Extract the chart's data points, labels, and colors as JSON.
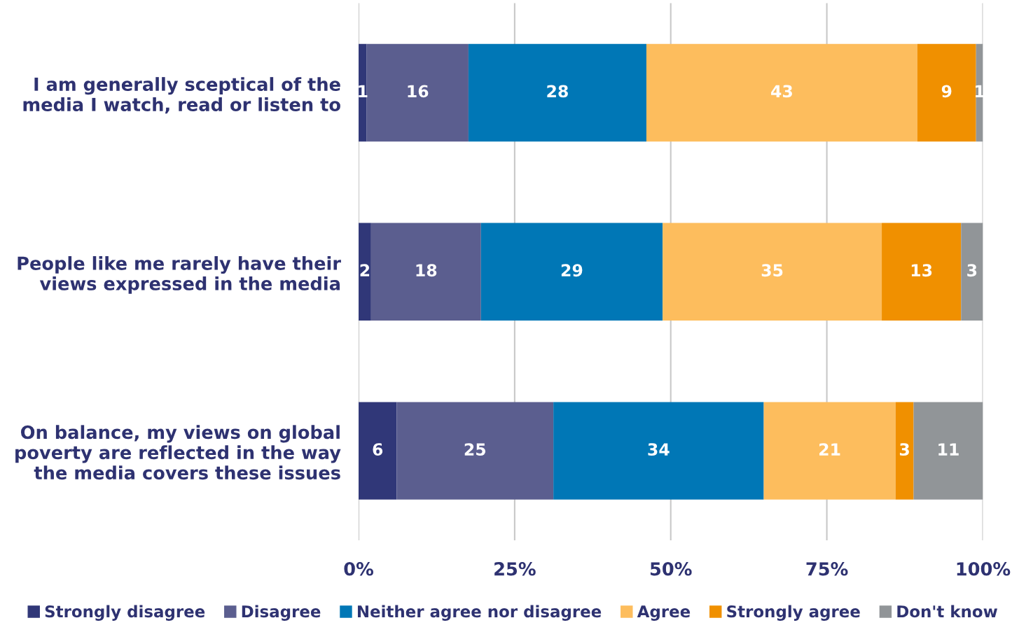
{
  "chart_data": {
    "type": "bar",
    "orientation": "horizontal",
    "stacked": true,
    "categories": [
      "I am generally sceptical of the\nmedia I watch, read or listen to",
      "People like me rarely have their\nviews expressed in the media",
      "On balance, my views on global\npoverty are reflected in the way\nthe media covers these issues"
    ],
    "series": [
      {
        "name": "Strongly disagree",
        "color": "#303778",
        "values": [
          1.3,
          2.0,
          6.1
        ],
        "value_labels": [
          "1",
          "2",
          "6"
        ]
      },
      {
        "name": "Disagree",
        "color": "#5b5e8f",
        "values": [
          16.3,
          17.6,
          25.1
        ],
        "value_labels": [
          "16",
          "18",
          "25"
        ]
      },
      {
        "name": "Neither agree nor disagree",
        "color": "#0077b6",
        "values": [
          28.5,
          29.1,
          33.7
        ],
        "value_labels": [
          "28",
          "29",
          "34"
        ]
      },
      {
        "name": "Agree",
        "color": "#fdbd5d",
        "values": [
          43.4,
          35.1,
          21.1
        ],
        "value_labels": [
          "43",
          "35",
          "21"
        ]
      },
      {
        "name": "Strongly agree",
        "color": "#f09000",
        "values": [
          9.4,
          12.7,
          2.9
        ],
        "value_labels": [
          "9",
          "13",
          "3"
        ]
      },
      {
        "name": "Don't know",
        "color": "#919598",
        "values": [
          1.1,
          3.5,
          11.1
        ],
        "value_labels": [
          "1",
          "3",
          "11"
        ]
      }
    ],
    "xlim": [
      0,
      100
    ],
    "xticks": [
      {
        "value": 0,
        "label": "0%"
      },
      {
        "value": 25,
        "label": "25%"
      },
      {
        "value": 50,
        "label": "50%"
      },
      {
        "value": 75,
        "label": "75%"
      },
      {
        "value": 100,
        "label": "100%"
      }
    ],
    "grid": "x",
    "legend": "bottom"
  }
}
